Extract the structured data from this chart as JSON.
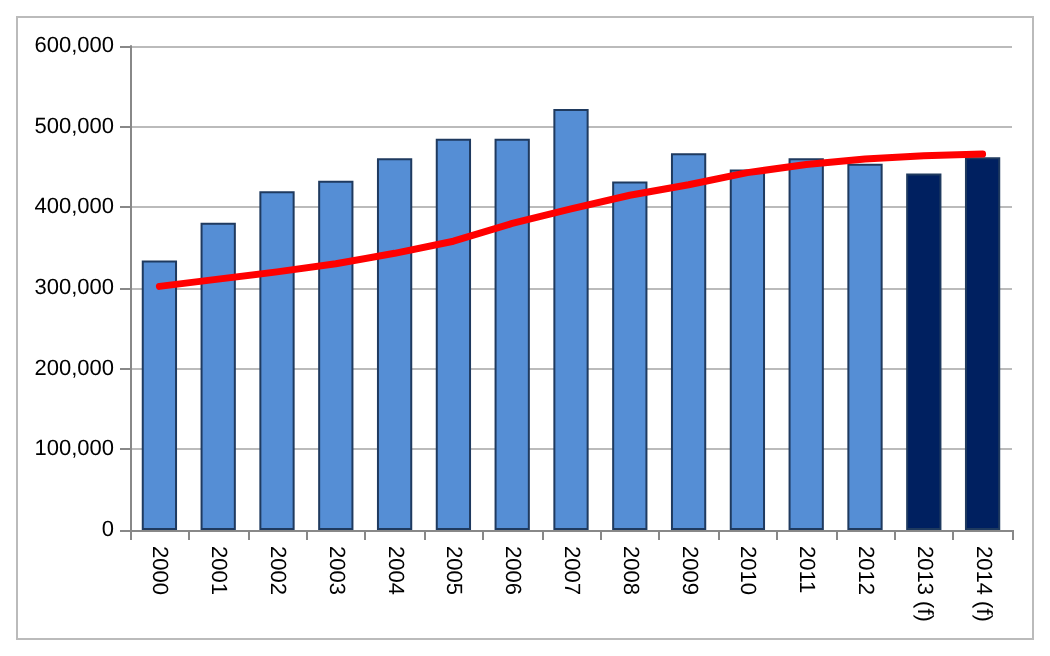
{
  "chart_data": {
    "type": "bar",
    "categories": [
      "2000",
      "2001",
      "2002",
      "2003",
      "2004",
      "2005",
      "2006",
      "2007",
      "2008",
      "2009",
      "2010",
      "2011",
      "2012",
      "2013 (f)",
      "2014 (f)"
    ],
    "series": [
      {
        "colors": [
          "#558ed5",
          "#558ed5",
          "#558ed5",
          "#558ed5",
          "#558ed5",
          "#558ed5",
          "#558ed5",
          "#558ed5",
          "#558ed5",
          "#558ed5",
          "#558ed5",
          "#558ed5",
          "#558ed5",
          "#002060",
          "#002060"
        ],
        "values": [
          334000,
          381000,
          420000,
          433000,
          461000,
          485000,
          485000,
          522000,
          432000,
          467000,
          447000,
          461000,
          454000,
          442000,
          462000
        ]
      },
      {
        "type": "line",
        "color": "#ff0000",
        "marker": "none",
        "line_style": "solid",
        "values": [
          302000,
          311000,
          320000,
          330000,
          343000,
          358000,
          380000,
          398000,
          415000,
          428000,
          443000,
          453000,
          460000,
          464000,
          466000
        ]
      }
    ],
    "ylim": [
      0,
      600000
    ],
    "yticks": [
      0,
      {
        "value": 100000,
        "label": "100,000"
      },
      {
        "value": 200000,
        "label": "200,000"
      },
      {
        "value": 300000,
        "label": "300,000"
      },
      {
        "value": 400000,
        "label": "400,000"
      },
      {
        "value": 500000,
        "label": "500,000"
      },
      {
        "value": 600000,
        "label": "600,000"
      }
    ],
    "grid": "y"
  }
}
